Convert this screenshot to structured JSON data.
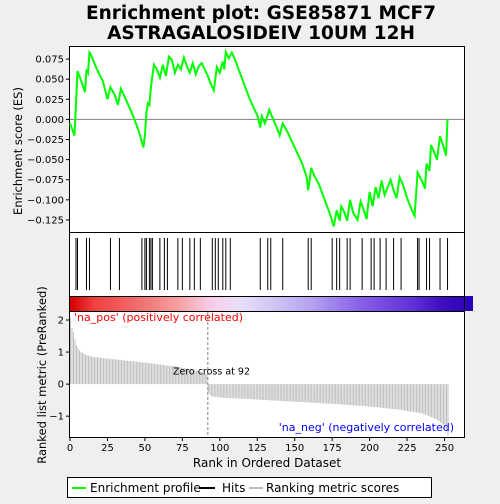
{
  "chart_data": {
    "type": "line",
    "title_line1": "Enrichment plot: GSE85871 MCF7",
    "title_line2": "ASTRAGALOSIDEIV 10UM 12H",
    "es_panel": {
      "ylabel": "Enrichment score (ES)",
      "ylim": [
        -0.14,
        0.09
      ],
      "yticks": [
        0.075,
        0.05,
        0.025,
        0.0,
        -0.025,
        -0.05,
        -0.075,
        -0.1,
        -0.125
      ],
      "ytick_labels": [
        "0.075",
        "0.050",
        "0.025",
        "0.000",
        "−0.025",
        "−0.050",
        "−0.075",
        "−0.100",
        "−0.125"
      ],
      "line_color": "#00ff00",
      "zero_line_color": "#808080",
      "es_curve": [
        [
          0,
          -0.005
        ],
        [
          1,
          -0.01
        ],
        [
          2,
          -0.015
        ],
        [
          3,
          -0.02
        ],
        [
          4,
          0.02
        ],
        [
          5,
          0.06
        ],
        [
          7,
          0.05
        ],
        [
          10,
          0.034
        ],
        [
          11,
          0.062
        ],
        [
          12,
          0.058
        ],
        [
          13,
          0.083
        ],
        [
          14,
          0.08
        ],
        [
          18,
          0.062
        ],
        [
          22,
          0.047
        ],
        [
          25,
          0.025
        ],
        [
          27,
          0.04
        ],
        [
          30,
          0.03
        ],
        [
          32,
          0.018
        ],
        [
          34,
          0.038
        ],
        [
          38,
          0.022
        ],
        [
          42,
          0.005
        ],
        [
          46,
          -0.015
        ],
        [
          49,
          -0.035
        ],
        [
          50,
          -0.02
        ],
        [
          51,
          0.008
        ],
        [
          52,
          0.02
        ],
        [
          53,
          0.018
        ],
        [
          54,
          0.04
        ],
        [
          56,
          0.068
        ],
        [
          58,
          0.062
        ],
        [
          60,
          0.052
        ],
        [
          62,
          0.068
        ],
        [
          64,
          0.054
        ],
        [
          66,
          0.078
        ],
        [
          68,
          0.074
        ],
        [
          70,
          0.058
        ],
        [
          72,
          0.068
        ],
        [
          74,
          0.062
        ],
        [
          76,
          0.077
        ],
        [
          78,
          0.066
        ],
        [
          80,
          0.058
        ],
        [
          82,
          0.07
        ],
        [
          84,
          0.056
        ],
        [
          86,
          0.066
        ],
        [
          88,
          0.07
        ],
        [
          90,
          0.062
        ],
        [
          92,
          0.054
        ],
        [
          94,
          0.044
        ],
        [
          96,
          0.036
        ],
        [
          97,
          0.05
        ],
        [
          98,
          0.065
        ],
        [
          100,
          0.058
        ],
        [
          102,
          0.072
        ],
        [
          103,
          0.062
        ],
        [
          104,
          0.084
        ],
        [
          106,
          0.076
        ],
        [
          108,
          0.083
        ],
        [
          110,
          0.075
        ],
        [
          115,
          0.05
        ],
        [
          120,
          0.025
        ],
        [
          125,
          0.005
        ],
        [
          127,
          -0.01
        ],
        [
          128,
          0.004
        ],
        [
          130,
          -0.005
        ],
        [
          131,
          0.0
        ],
        [
          133,
          0.012
        ],
        [
          135,
          0.003
        ],
        [
          138,
          -0.01
        ],
        [
          140,
          -0.02
        ],
        [
          142,
          -0.005
        ],
        [
          145,
          -0.015
        ],
        [
          150,
          -0.035
        ],
        [
          155,
          -0.055
        ],
        [
          158,
          -0.072
        ],
        [
          159,
          -0.088
        ],
        [
          160,
          -0.075
        ],
        [
          161,
          -0.06
        ],
        [
          163,
          -0.07
        ],
        [
          166,
          -0.08
        ],
        [
          170,
          -0.1
        ],
        [
          174,
          -0.12
        ],
        [
          176,
          -0.133
        ],
        [
          178,
          -0.113
        ],
        [
          180,
          -0.126
        ],
        [
          181,
          -0.108
        ],
        [
          183,
          -0.115
        ],
        [
          185,
          -0.126
        ],
        [
          187,
          -0.1
        ],
        [
          189,
          -0.116
        ],
        [
          192,
          -0.125
        ],
        [
          194,
          -0.102
        ],
        [
          196,
          -0.112
        ],
        [
          198,
          -0.124
        ],
        [
          200,
          -0.09
        ],
        [
          202,
          -0.108
        ],
        [
          204,
          -0.084
        ],
        [
          206,
          -0.098
        ],
        [
          208,
          -0.076
        ],
        [
          210,
          -0.094
        ],
        [
          214,
          -0.075
        ],
        [
          216,
          -0.088
        ],
        [
          218,
          -0.098
        ],
        [
          220,
          -0.072
        ],
        [
          222,
          -0.08
        ],
        [
          225,
          -0.098
        ],
        [
          228,
          -0.112
        ],
        [
          230,
          -0.12
        ],
        [
          232,
          -0.066
        ],
        [
          235,
          -0.077
        ],
        [
          237,
          -0.086
        ],
        [
          238,
          -0.055
        ],
        [
          240,
          -0.064
        ],
        [
          241,
          -0.032
        ],
        [
          243,
          -0.04
        ],
        [
          245,
          -0.05
        ],
        [
          247,
          -0.021
        ],
        [
          249,
          -0.032
        ],
        [
          251,
          -0.045
        ],
        [
          252,
          0.0
        ]
      ]
    },
    "hits": [
      4,
      5,
      11,
      13,
      27,
      33,
      48,
      50,
      51,
      53,
      54,
      55,
      60,
      63,
      65,
      72,
      75,
      80,
      83,
      87,
      95,
      97,
      99,
      102,
      104,
      107,
      127,
      132,
      134,
      142,
      159,
      161,
      175,
      178,
      180,
      185,
      187,
      195,
      201,
      203,
      207,
      211,
      216,
      221,
      232,
      233,
      238,
      240,
      247,
      252
    ],
    "heatmap": {
      "stops": [
        {
          "pos": 0.0,
          "color": "#d30000"
        },
        {
          "pos": 0.06,
          "color": "#f04040"
        },
        {
          "pos": 0.16,
          "color": "#f06a6a"
        },
        {
          "pos": 0.26,
          "color": "#f49c9c"
        },
        {
          "pos": 0.35,
          "color": "#f8cce8"
        },
        {
          "pos": 0.42,
          "color": "#e8e0f8"
        },
        {
          "pos": 0.5,
          "color": "#d2c8f4"
        },
        {
          "pos": 0.6,
          "color": "#b4a0f0"
        },
        {
          "pos": 0.72,
          "color": "#8860e8"
        },
        {
          "pos": 0.85,
          "color": "#6030d8"
        },
        {
          "pos": 0.92,
          "color": "#4010c0"
        },
        {
          "pos": 1.0,
          "color": "#2a00b8"
        }
      ]
    },
    "rank_panel": {
      "ylabel": "Ranked list metric (PreRanked)",
      "xlabel": "Rank in Ordered Dataset",
      "ylim": [
        -1.65,
        2.25
      ],
      "yticks": [
        2,
        1,
        0,
        -1
      ],
      "ytick_labels": [
        "2",
        "1",
        "0",
        "−1"
      ],
      "xlim": [
        0,
        263
      ],
      "xticks": [
        0,
        25,
        50,
        75,
        100,
        125,
        150,
        175,
        200,
        225,
        250
      ],
      "xtick_labels": [
        "0",
        "25",
        "50",
        "75",
        "100",
        "125",
        "150",
        "175",
        "200",
        "225",
        "250"
      ],
      "zero_cross_rank": 92,
      "zero_cross_label": "Zero cross at 92",
      "pos_label": "'na_pos' (positively correlated)",
      "neg_label": "'na_neg' (negatively correlated)",
      "pos_label_color": "#ff0000",
      "neg_label_color": "#0000ff",
      "n_ranks": 253,
      "metric_profile": [
        [
          0,
          2.05
        ],
        [
          1,
          1.75
        ],
        [
          2,
          1.62
        ],
        [
          3,
          1.4
        ],
        [
          4,
          1.22
        ],
        [
          5,
          1.12
        ],
        [
          6,
          1.05
        ],
        [
          8,
          0.98
        ],
        [
          10,
          0.92
        ],
        [
          14,
          0.86
        ],
        [
          20,
          0.82
        ],
        [
          30,
          0.77
        ],
        [
          40,
          0.72
        ],
        [
          50,
          0.67
        ],
        [
          60,
          0.61
        ],
        [
          70,
          0.55
        ],
        [
          80,
          0.46
        ],
        [
          88,
          0.38
        ],
        [
          91,
          0.3
        ],
        [
          92,
          -0.25
        ],
        [
          94,
          -0.38
        ],
        [
          100,
          -0.42
        ],
        [
          120,
          -0.47
        ],
        [
          150,
          -0.55
        ],
        [
          180,
          -0.63
        ],
        [
          200,
          -0.7
        ],
        [
          220,
          -0.8
        ],
        [
          235,
          -0.92
        ],
        [
          242,
          -1.05
        ],
        [
          246,
          -1.15
        ],
        [
          249,
          -1.28
        ],
        [
          251,
          -1.45
        ],
        [
          252,
          -1.6
        ]
      ]
    },
    "legend": {
      "entries": [
        {
          "label": "Enrichment profile",
          "color": "#00ff00"
        },
        {
          "label": "Hits",
          "color": "#000000"
        },
        {
          "label": "Ranking metric scores",
          "color": "#bebebe"
        }
      ]
    }
  }
}
